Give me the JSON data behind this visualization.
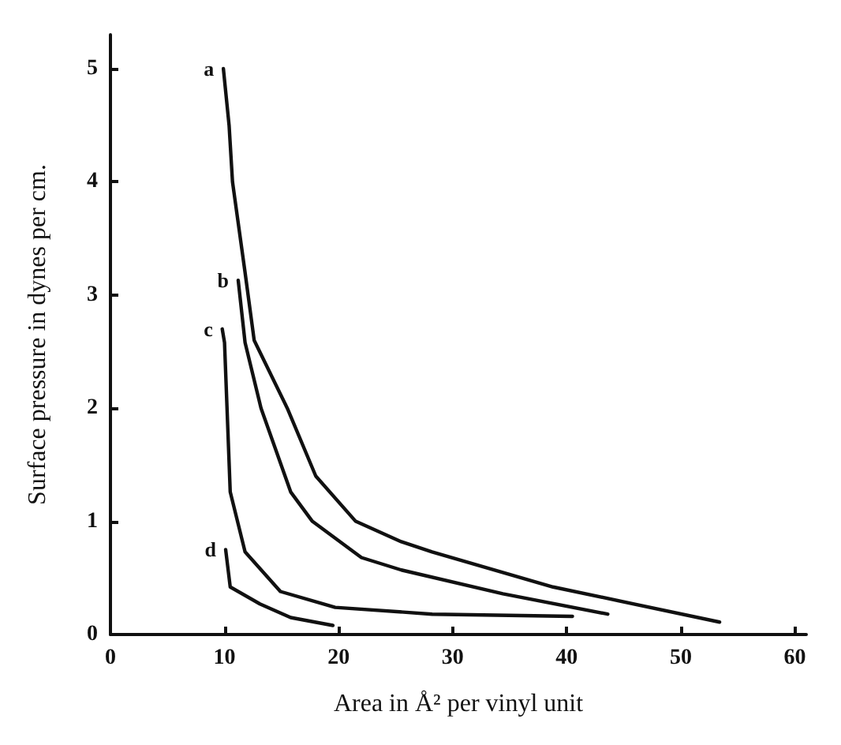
{
  "chart_data": {
    "type": "line",
    "xlabel": "Area in Å² per vinyl unit",
    "ylabel": "Surface pressure in dynes per cm.",
    "xlim": [
      0,
      61
    ],
    "xticks": [
      0,
      10,
      20,
      30,
      40,
      50,
      60
    ],
    "ylim": [
      0,
      5.3
    ],
    "yticks": [
      0,
      1,
      2,
      3,
      4,
      5
    ],
    "grid": false,
    "legend": false,
    "marker": "none",
    "line_style": "solid",
    "series": [
      {
        "name": "a",
        "color": "#111111",
        "x": [
          9.9,
          10.4,
          10.7,
          11.8,
          12.6,
          15.5,
          18,
          21.5,
          25.5,
          28.2,
          38.8,
          53.4
        ],
        "values": [
          5.0,
          4.5,
          4.0,
          3.2,
          2.6,
          2.0,
          1.4,
          1.0,
          0.82,
          0.73,
          0.42,
          0.11
        ]
      },
      {
        "name": "b",
        "color": "#111111",
        "x": [
          11.2,
          11.8,
          13.2,
          15.8,
          17.7,
          22,
          25.5,
          34.4,
          43.6
        ],
        "values": [
          3.13,
          2.58,
          2.0,
          1.26,
          1.0,
          0.68,
          0.57,
          0.36,
          0.18
        ]
      },
      {
        "name": "c",
        "color": "#111111",
        "x": [
          9.8,
          10.0,
          10.5,
          11.8,
          14.9,
          19.7,
          28.2,
          40.5
        ],
        "values": [
          2.7,
          2.58,
          1.26,
          0.73,
          0.38,
          0.24,
          0.18,
          0.16
        ]
      },
      {
        "name": "d",
        "color": "#111111",
        "x": [
          10.1,
          10.5,
          13.1,
          15.8,
          19.5
        ],
        "values": [
          0.75,
          0.42,
          0.27,
          0.15,
          0.08
        ]
      }
    ]
  }
}
